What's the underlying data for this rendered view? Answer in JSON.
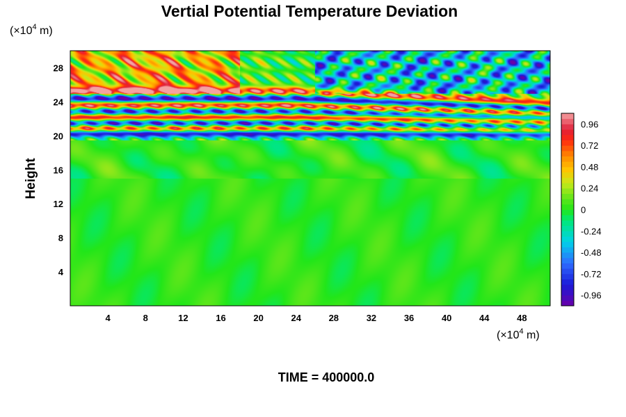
{
  "chart_data": {
    "type": "heatmap",
    "title": "Vertial Potential Temperature Deviation",
    "xlabel": "",
    "ylabel": "Height",
    "x_unit_label": {
      "prefix": "(×10",
      "exp": "4",
      "suffix": " m)"
    },
    "y_unit_label": {
      "prefix": "(×10",
      "exp": "4",
      "suffix": " m)"
    },
    "xlim": [
      0,
      51
    ],
    "ylim": [
      0,
      30
    ],
    "x_ticks": [
      4,
      8,
      12,
      16,
      20,
      24,
      28,
      32,
      36,
      40,
      44,
      48
    ],
    "x_tick_labels": [
      "4",
      "8",
      "12",
      "16",
      "20",
      "24",
      "28",
      "32",
      "36",
      "40",
      "44",
      "48"
    ],
    "y_ticks": [
      4,
      8,
      12,
      16,
      20,
      24,
      28
    ],
    "y_tick_labels": [
      "4",
      "8",
      "12",
      "16",
      "20",
      "24",
      "28"
    ],
    "colorbar": {
      "range": [
        -1.08,
        1.08
      ],
      "ticks": [
        0.96,
        0.72,
        0.48,
        0.24,
        0,
        -0.24,
        -0.48,
        -0.72,
        -0.96
      ],
      "tick_labels": [
        "0.96",
        "0.72",
        "0.48",
        "0.24",
        "0",
        "-0.24",
        "-0.48",
        "-0.72",
        "-0.96"
      ],
      "stops": [
        {
          "v": -1.08,
          "color": "#6a00a8"
        },
        {
          "v": -0.84,
          "color": "#1a1ad8"
        },
        {
          "v": -0.6,
          "color": "#2f6cff"
        },
        {
          "v": -0.36,
          "color": "#00d2e8"
        },
        {
          "v": -0.12,
          "color": "#00e878"
        },
        {
          "v": 0.0,
          "color": "#22e619"
        },
        {
          "v": 0.12,
          "color": "#5ce61a"
        },
        {
          "v": 0.3,
          "color": "#c8e81a"
        },
        {
          "v": 0.45,
          "color": "#ffc400"
        },
        {
          "v": 0.6,
          "color": "#ff8a00"
        },
        {
          "v": 0.78,
          "color": "#ff2a10"
        },
        {
          "v": 0.9,
          "color": "#e0203a"
        },
        {
          "v": 1.08,
          "color": "#f4a2a2"
        }
      ]
    },
    "field_features": {
      "stratosphere_band": {
        "lower_height": 19.5,
        "bands": [
          {
            "y": 20.3,
            "value": -1.0
          },
          {
            "y": 20.9,
            "value": 0.95
          },
          {
            "y": 21.5,
            "value": -1.0
          },
          {
            "y": 22.2,
            "value": 0.95
          },
          {
            "y": 22.9,
            "value": -0.9
          },
          {
            "y": 23.6,
            "value": 0.95
          },
          {
            "y": 24.4,
            "value": -0.95
          },
          {
            "y": 25.3,
            "value": 0.9
          }
        ],
        "upper_left_warm": {
          "x": [
            0,
            18
          ],
          "y": [
            25,
            30
          ],
          "value": 0.75
        },
        "upper_right_cold": {
          "x": [
            26,
            51
          ],
          "y": [
            25,
            30
          ],
          "value": -0.75
        }
      },
      "background_value": 0.02
    },
    "footer": "TIME = 400000.0"
  }
}
